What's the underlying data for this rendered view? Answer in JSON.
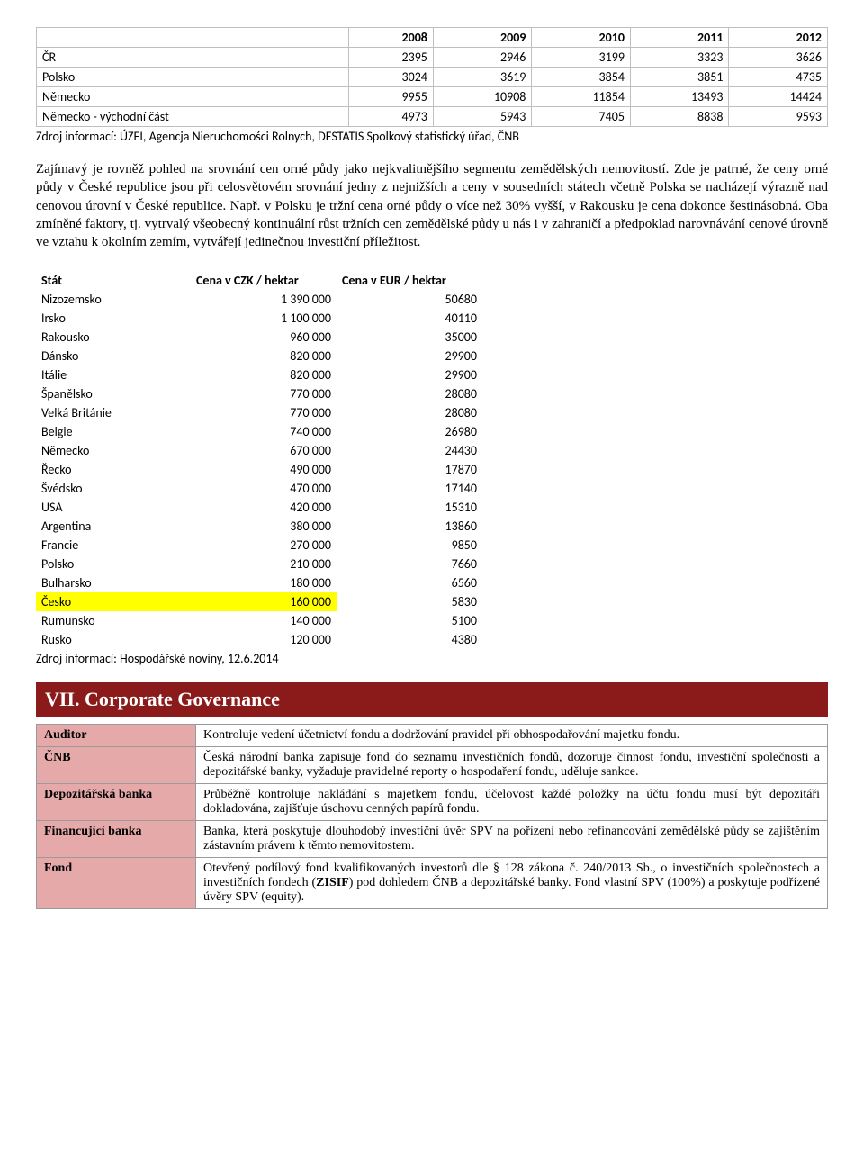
{
  "table1": {
    "col_headers": [
      "2008",
      "2009",
      "2010",
      "2011",
      "2012"
    ],
    "rows": [
      {
        "label": "ČR",
        "vals": [
          "2395",
          "2946",
          "3199",
          "3323",
          "3626"
        ]
      },
      {
        "label": "Polsko",
        "vals": [
          "3024",
          "3619",
          "3854",
          "3851",
          "4735"
        ]
      },
      {
        "label": "Německo",
        "vals": [
          "9955",
          "10908",
          "11854",
          "13493",
          "14424"
        ]
      },
      {
        "label": "Německo - východní část",
        "vals": [
          "4973",
          "5943",
          "7405",
          "8838",
          "9593"
        ]
      }
    ],
    "source": "Zdroj informací: ÚZEI, Agencja Nieruchomości Rolnych, DESTATIS Spolkový statistický úřad, ČNB"
  },
  "paragraph": "Zajímavý je rovněž pohled na srovnání cen orné půdy jako nejkvalitnějšího segmentu zemědělských nemovitostí. Zde je patrné, že ceny orné půdy v České republice jsou při celosvětovém srovnání jedny z nejnižších a ceny v sousedních státech včetně Polska se nacházejí výrazně nad cenovou úrovní v České republice. Např. v Polsku je tržní cena orné půdy o více než 30% vyšší, v Rakousku je cena dokonce šestinásobná. Oba zmíněné faktory, tj. vytrvalý všeobecný kontinuální růst tržních cen zemědělské půdy u nás i v zahraničí a předpoklad narovnávání cenové úrovně ve vztahu k okolním zemím, vytvářejí jedinečnou investiční příležitost.",
  "table2": {
    "headers": {
      "c0": "Stát",
      "c1": "Cena v CZK / hektar",
      "c2": "Cena v EUR / hektar"
    },
    "rows": [
      {
        "c0": "Nizozemsko",
        "c1": "1 390 000",
        "c2": "50680",
        "hl": false
      },
      {
        "c0": "Irsko",
        "c1": "1 100 000",
        "c2": "40110",
        "hl": false
      },
      {
        "c0": "Rakousko",
        "c1": "960 000",
        "c2": "35000",
        "hl": false
      },
      {
        "c0": "Dánsko",
        "c1": "820 000",
        "c2": "29900",
        "hl": false
      },
      {
        "c0": "Itálie",
        "c1": "820 000",
        "c2": "29900",
        "hl": false
      },
      {
        "c0": "Španělsko",
        "c1": "770 000",
        "c2": "28080",
        "hl": false
      },
      {
        "c0": "Velká Británie",
        "c1": "770 000",
        "c2": "28080",
        "hl": false
      },
      {
        "c0": "Belgie",
        "c1": "740 000",
        "c2": "26980",
        "hl": false
      },
      {
        "c0": "Německo",
        "c1": "670 000",
        "c2": "24430",
        "hl": false
      },
      {
        "c0": "Řecko",
        "c1": "490 000",
        "c2": "17870",
        "hl": false
      },
      {
        "c0": "Švédsko",
        "c1": "470 000",
        "c2": "17140",
        "hl": false
      },
      {
        "c0": "USA",
        "c1": "420 000",
        "c2": "15310",
        "hl": false
      },
      {
        "c0": "Argentina",
        "c1": "380 000",
        "c2": "13860",
        "hl": false
      },
      {
        "c0": "Francie",
        "c1": "270 000",
        "c2": "9850",
        "hl": false
      },
      {
        "c0": "Polsko",
        "c1": "210 000",
        "c2": "7660",
        "hl": false
      },
      {
        "c0": "Bulharsko",
        "c1": "180 000",
        "c2": "6560",
        "hl": false
      },
      {
        "c0": "Česko",
        "c1": "160 000",
        "c2": "5830",
        "hl": true
      },
      {
        "c0": "Rumunsko",
        "c1": "140 000",
        "c2": "5100",
        "hl": false
      },
      {
        "c0": "Rusko",
        "c1": "120 000",
        "c2": "4380",
        "hl": false
      }
    ],
    "source": "Zdroj informací: Hospodářské noviny, 12.6.2014"
  },
  "section_title": "VII. Corporate Governance",
  "gov": {
    "rows": [
      {
        "label": "Auditor",
        "text": "Kontroluje vedení účetnictví fondu a dodržování pravidel při obhospodařování majetku fondu."
      },
      {
        "label": "ČNB",
        "text": "Česká národní banka zapisuje fond do seznamu investičních fondů, dozoruje činnost fondu, investiční společnosti a depozitářské banky, vyžaduje pravidelné reporty o hospodaření fondu, uděluje sankce."
      },
      {
        "label": "Depozitářská banka",
        "text": "Průběžně kontroluje nakládání s majetkem fondu, účelovost každé položky na účtu fondu musí být depozitáři dokladována, zajišťuje úschovu cenných papírů fondu."
      },
      {
        "label": "Financující banka",
        "text": "Banka, která poskytuje dlouhodobý investiční úvěr SPV na pořízení nebo refinancování zemědělské půdy se zajištěním zástavním právem k těmto nemovitostem."
      },
      {
        "label": "Fond",
        "text_pre": "Otevřený podílový fond kvalifikovaných investorů dle § 128 zákona č. 240/2013 Sb., o investičních společnostech a investičních fondech (",
        "text_bold": "ZISIF",
        "text_post": ") pod dohledem ČNB a depozitářské banky. Fond vlastní SPV (100%) a poskytuje podřízené úvěry SPV (equity)."
      }
    ]
  }
}
